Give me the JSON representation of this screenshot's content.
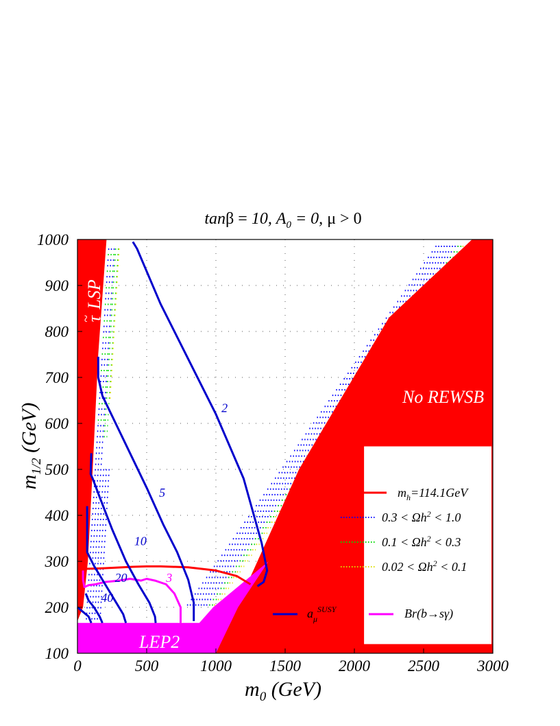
{
  "chart_data": {
    "type": "line",
    "title": "tanβ = 10, A₀ = 0, μ > 0",
    "xlabel": "m₀ (GeV)",
    "ylabel": "m₁/₂ (GeV)",
    "xlim": [
      0,
      3000
    ],
    "ylim": [
      100,
      1000
    ],
    "xticks": [
      "0",
      "500",
      "1000",
      "1500",
      "2000",
      "2500",
      "3000"
    ],
    "yticks": [
      "100",
      "200",
      "300",
      "400",
      "500",
      "600",
      "700",
      "800",
      "900",
      "1000"
    ],
    "grid": true,
    "legend_position": "bottom-right",
    "colors": {
      "excluded": "#ff0000",
      "lep2": "#ff00ff",
      "higgs": "#ff0000",
      "amu": "#0000cc",
      "bsg": "#ff00ff",
      "relic_high": "#0000ff",
      "relic_mid": "#00dd00",
      "relic_low": "#dddd00"
    },
    "regions": {
      "stau_lsp": {
        "label": "τ̃ LSP",
        "boundary": [
          [
            0,
            1000
          ],
          [
            210,
            1000
          ],
          [
            150,
            750
          ],
          [
            110,
            500
          ],
          [
            75,
            300
          ],
          [
            40,
            200
          ],
          [
            0,
            170
          ]
        ]
      },
      "no_rewsb": {
        "label": "No REWSB",
        "boundary": [
          [
            1000,
            100
          ],
          [
            1600,
            500
          ],
          [
            2250,
            830
          ],
          [
            2850,
            1000
          ],
          [
            3000,
            1000
          ],
          [
            3000,
            100
          ]
        ]
      },
      "no_rewsb_inner_white": [
        [
          1170,
          125
        ],
        [
          1680,
          460
        ],
        [
          2880,
          980
        ],
        [
          2930,
          475
        ],
        [
          2930,
          125
        ]
      ],
      "lep2": {
        "label": "LEP2",
        "boundary": [
          [
            0,
            100
          ],
          [
            1000,
            100
          ],
          [
            1160,
            200
          ],
          [
            1380,
            300
          ],
          [
            980,
            200
          ],
          [
            880,
            166
          ],
          [
            0,
            166
          ]
        ]
      }
    },
    "legend_box": [
      [
        2070,
        120
      ],
      [
        2990,
        120
      ],
      [
        2990,
        550
      ],
      [
        2070,
        550
      ]
    ],
    "series": [
      {
        "name": "m_h=114.1GeV",
        "kind": "higgs",
        "x": [
          0,
          200,
          400,
          500,
          600,
          800,
          1000,
          1150,
          1250
        ],
        "y": [
          283,
          285,
          288,
          289,
          289,
          287,
          280,
          268,
          250
        ]
      },
      {
        "name": "Br(b→sγ)",
        "kind": "bsg",
        "label": "3",
        "x": [
          745,
          745,
          700,
          640,
          560,
          500,
          460,
          380,
          300,
          200,
          130,
          80,
          50,
          40,
          40
        ],
        "y": [
          166,
          200,
          230,
          250,
          258,
          262,
          258,
          262,
          258,
          255,
          250,
          248,
          244,
          260,
          280
        ]
      },
      {
        "name": "a_μ^SUSY",
        "kind": "amu",
        "label": "2",
        "x": [
          400,
          430,
          600,
          800,
          1000,
          1200,
          1330,
          1370,
          1345,
          1300
        ],
        "y": [
          995,
          980,
          860,
          740,
          620,
          480,
          340,
          280,
          255,
          246
        ]
      },
      {
        "name": "",
        "kind": "amu",
        "label": "5",
        "x": [
          150,
          150,
          180,
          340,
          500,
          620,
          720,
          800,
          840,
          840
        ],
        "y": [
          745,
          700,
          660,
          560,
          460,
          380,
          320,
          260,
          210,
          170
        ]
      },
      {
        "name": "",
        "kind": "amu",
        "label": "10",
        "x": [
          100,
          95,
          110,
          160,
          250,
          350,
          440,
          520,
          560,
          565
        ],
        "y": [
          535,
          490,
          480,
          440,
          370,
          300,
          250,
          210,
          180,
          166
        ]
      },
      {
        "name": "",
        "kind": "amu",
        "label": "20",
        "x": [
          70,
          70,
          120,
          200,
          280,
          330,
          350
        ],
        "y": [
          420,
          320,
          290,
          250,
          210,
          185,
          166
        ]
      },
      {
        "name": "",
        "kind": "amu",
        "label": "40",
        "x": [
          60,
          80,
          120,
          160,
          180
        ],
        "y": [
          230,
          215,
          200,
          180,
          166
        ]
      },
      {
        "name": "",
        "kind": "amu",
        "label": "",
        "x": [
          0,
          40,
          80,
          100
        ],
        "y": [
          200,
          190,
          180,
          166
        ]
      }
    ],
    "relic_bands": [
      {
        "name": "0.3 < Ωh² < 1.0",
        "kind": "relic_high"
      },
      {
        "name": "0.1 < Ωh² < 0.3",
        "kind": "relic_mid"
      },
      {
        "name": "0.02 < Ωh² < 0.1",
        "kind": "relic_low"
      }
    ],
    "annotations": {
      "contour_labels": [
        {
          "text": "2",
          "x": 1040,
          "y": 625,
          "color": "amu"
        },
        {
          "text": "5",
          "x": 590,
          "y": 440,
          "color": "amu"
        },
        {
          "text": "10",
          "x": 410,
          "y": 335,
          "color": "amu"
        },
        {
          "text": "20",
          "x": 270,
          "y": 255,
          "color": "amu"
        },
        {
          "text": "40",
          "x": 170,
          "y": 212,
          "color": "amu"
        },
        {
          "text": "3",
          "x": 640,
          "y": 255,
          "color": "bsg"
        }
      ]
    },
    "legend": [
      {
        "label": "m_h=114.1GeV",
        "kind": "higgs"
      },
      {
        "label": "0.3 < Ωh² < 1.0",
        "kind": "relic_high"
      },
      {
        "label": "0.1 < Ωh² < 0.3",
        "kind": "relic_mid"
      },
      {
        "label": "0.02 < Ωh² < 0.1",
        "kind": "relic_low"
      },
      {
        "label": "a_μ^SUSY",
        "kind": "amu"
      },
      {
        "label": "Br(b→sγ)",
        "kind": "bsg"
      }
    ]
  }
}
